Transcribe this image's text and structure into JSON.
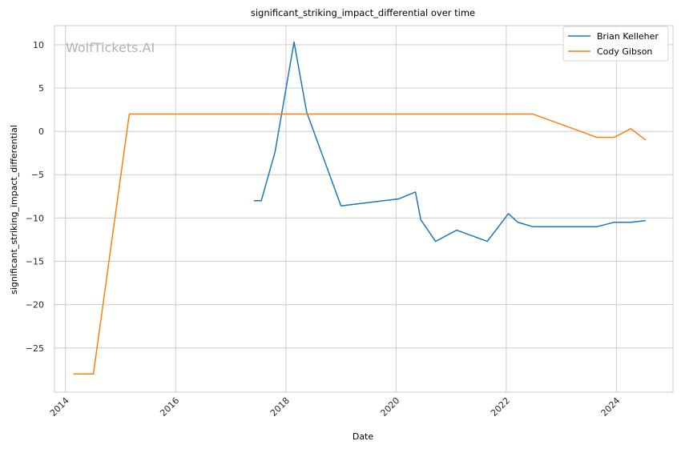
{
  "chart_data": {
    "type": "line",
    "title": "significant_striking_impact_differential over time",
    "xlabel": "Date",
    "ylabel": "significant_striking_impact_differential",
    "watermark": "WolfTickets.AI",
    "xlim": [
      "2013-10-20",
      "2025-01-10"
    ],
    "ylim": [
      -30.1,
      12.2
    ],
    "x_ticks": [
      "2014",
      "2016",
      "2018",
      "2020",
      "2022",
      "2024"
    ],
    "y_ticks": [
      10,
      5,
      0,
      -5,
      -10,
      -15,
      -20,
      -25
    ],
    "grid": true,
    "legend_position": "top-right",
    "series": [
      {
        "name": "Brian Kelleher",
        "color": "#1f77b4",
        "points": [
          [
            "2017-06-03",
            -8.0
          ],
          [
            "2017-07-22",
            -8.0
          ],
          [
            "2017-10-21",
            -2.4
          ],
          [
            "2018-02-24",
            10.3
          ],
          [
            "2018-05-19",
            2.2
          ],
          [
            "2019-01-01",
            -8.6
          ],
          [
            "2020-01-18",
            -7.8
          ],
          [
            "2020-05-09",
            -7.0
          ],
          [
            "2020-06-13",
            -10.2
          ],
          [
            "2020-09-19",
            -12.7
          ],
          [
            "2021-02-06",
            -11.4
          ],
          [
            "2021-08-28",
            -12.7
          ],
          [
            "2022-01-15",
            -9.5
          ],
          [
            "2022-03-19",
            -10.5
          ],
          [
            "2022-06-25",
            -11.0
          ],
          [
            "2023-08-26",
            -11.0
          ],
          [
            "2023-12-16",
            -10.5
          ],
          [
            "2024-04-06",
            -10.5
          ],
          [
            "2024-07-13",
            -10.3
          ]
        ]
      },
      {
        "name": "Cody Gibson",
        "color": "#ff7f0e",
        "points": [
          [
            "2014-02-22",
            -28.0
          ],
          [
            "2014-07-05",
            -28.0
          ],
          [
            "2015-02-28",
            2.0
          ],
          [
            "2022-06-25",
            2.0
          ],
          [
            "2023-08-26",
            -0.7
          ],
          [
            "2023-12-16",
            -0.7
          ],
          [
            "2024-04-06",
            0.3
          ],
          [
            "2024-07-13",
            -1.0
          ]
        ]
      }
    ]
  }
}
